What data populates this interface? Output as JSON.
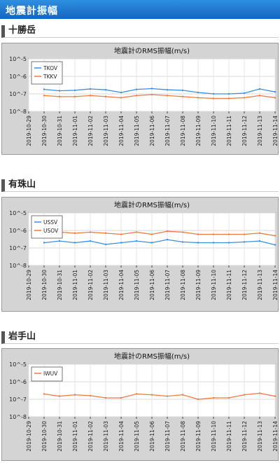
{
  "page_title": "地震計振幅",
  "sections": [
    {
      "title": "十勝岳",
      "chart_data": {
        "type": "line",
        "title": "地震計のRMS振幅(m/s)",
        "xlabel": "",
        "ylabel": "",
        "yscale": "log",
        "ylim": [
          "10^-8",
          "10^-5"
        ],
        "ytick_labels": [
          "10^-5",
          "10^-6",
          "10^-7",
          "10^-8"
        ],
        "x_tick_labels": [
          "2019-10-29",
          "2019-10-30",
          "2019-10-31",
          "2019-11-01",
          "2019-11-02",
          "2019-11-03",
          "2019-11-04",
          "2019-11-05",
          "2019-11-06",
          "2019-11-07",
          "2019-11-08",
          "2019-11-09",
          "2019-11-10",
          "2019-11-11",
          "2019-11-12",
          "2019-11-13",
          "2019-11-14"
        ],
        "legend_position": "top-left",
        "grid": true,
        "series": [
          {
            "name": "TKOV",
            "color": "#3b8fe0",
            "x": [
              "2019-10-30",
              "2019-10-31",
              "2019-11-01",
              "2019-11-02",
              "2019-11-03",
              "2019-11-04",
              "2019-11-05",
              "2019-11-06",
              "2019-11-07",
              "2019-11-08",
              "2019-11-09",
              "2019-11-10",
              "2019-11-11",
              "2019-11-12",
              "2019-11-13",
              "2019-11-14"
            ],
            "y": [
              1.8e-07,
              1.5e-07,
              1.6e-07,
              1.9e-07,
              1.7e-07,
              1.2e-07,
              1.8e-07,
              2e-07,
              1.7e-07,
              1.6e-07,
              1.2e-07,
              1e-07,
              1e-07,
              1.1e-07,
              1.9e-07,
              1.3e-07
            ]
          },
          {
            "name": "TKKV",
            "color": "#f07840",
            "x": [
              "2019-10-30",
              "2019-10-31",
              "2019-11-01",
              "2019-11-02",
              "2019-11-03",
              "2019-11-04",
              "2019-11-05",
              "2019-11-06",
              "2019-11-07",
              "2019-11-08",
              "2019-11-09",
              "2019-11-10",
              "2019-11-11",
              "2019-11-12",
              "2019-11-13",
              "2019-11-14"
            ],
            "y": [
              8e-08,
              7e-08,
              7e-08,
              8e-08,
              7e-08,
              6e-08,
              8e-08,
              9e-08,
              8e-08,
              7e-08,
              6e-08,
              5.5e-08,
              5.5e-08,
              6e-08,
              8e-08,
              6e-08
            ]
          }
        ]
      }
    },
    {
      "title": "有珠山",
      "chart_data": {
        "type": "line",
        "title": "地震計のRMS振幅(m/s)",
        "xlabel": "",
        "ylabel": "",
        "yscale": "log",
        "ylim": [
          "10^-8",
          "10^-5"
        ],
        "ytick_labels": [
          "10^-5",
          "10^-6",
          "10^-7",
          "10^-8"
        ],
        "x_tick_labels": [
          "2019-10-29",
          "2019-10-30",
          "2019-10-31",
          "2019-11-01",
          "2019-11-02",
          "2019-11-03",
          "2019-11-04",
          "2019-11-05",
          "2019-11-06",
          "2019-11-07",
          "2019-11-08",
          "2019-11-09",
          "2019-11-10",
          "2019-11-11",
          "2019-11-12",
          "2019-11-13",
          "2019-11-14"
        ],
        "legend_position": "top-left",
        "grid": true,
        "series": [
          {
            "name": "USSV",
            "color": "#3b8fe0",
            "x": [
              "2019-10-30",
              "2019-10-31",
              "2019-11-01",
              "2019-11-02",
              "2019-11-03",
              "2019-11-04",
              "2019-11-05",
              "2019-11-06",
              "2019-11-07",
              "2019-11-08",
              "2019-11-09",
              "2019-11-10",
              "2019-11-11",
              "2019-11-12",
              "2019-11-13",
              "2019-11-14"
            ],
            "y": [
              2e-07,
              2.5e-07,
              2e-07,
              2.5e-07,
              1.6e-07,
              2e-07,
              2.5e-07,
              2e-07,
              3e-07,
              2.2e-07,
              2e-07,
              2e-07,
              2e-07,
              2.2e-07,
              2.5e-07,
              1.5e-07
            ]
          },
          {
            "name": "USOV",
            "color": "#f07840",
            "x": [
              "2019-10-30",
              "2019-10-31",
              "2019-11-01",
              "2019-11-02",
              "2019-11-03",
              "2019-11-04",
              "2019-11-05",
              "2019-11-06",
              "2019-11-07",
              "2019-11-08",
              "2019-11-09",
              "2019-11-10",
              "2019-11-11",
              "2019-11-12",
              "2019-11-13",
              "2019-11-14"
            ],
            "y": [
              6e-07,
              8e-07,
              7e-07,
              8e-07,
              7e-07,
              6e-07,
              8e-07,
              6e-07,
              9e-07,
              8e-07,
              6e-07,
              6e-07,
              6e-07,
              6e-07,
              7e-07,
              5e-07
            ]
          }
        ]
      }
    },
    {
      "title": "岩手山",
      "chart_data": {
        "type": "line",
        "title": "地震計のRMS振幅(m/s)",
        "xlabel": "",
        "ylabel": "",
        "yscale": "log",
        "ylim": [
          "10^-8",
          "10^-5"
        ],
        "ytick_labels": [
          "10^-5",
          "10^-6",
          "10^-7",
          "10^-8"
        ],
        "x_tick_labels": [
          "2019-10-29",
          "2019-10-30",
          "2019-10-31",
          "2019-11-01",
          "2019-11-02",
          "2019-11-03",
          "2019-11-04",
          "2019-11-05",
          "2019-11-06",
          "2019-11-07",
          "2019-11-08",
          "2019-11-09",
          "2019-11-10",
          "2019-11-11",
          "2019-11-12",
          "2019-11-13",
          "2019-11-14"
        ],
        "legend_position": "top-left",
        "grid": true,
        "series": [
          {
            "name": "IWUV",
            "color": "#f07840",
            "x": [
              "2019-10-30",
              "2019-10-31",
              "2019-11-01",
              "2019-11-02",
              "2019-11-03",
              "2019-11-04",
              "2019-11-05",
              "2019-11-06",
              "2019-11-07",
              "2019-11-08",
              "2019-11-09",
              "2019-11-10",
              "2019-11-11",
              "2019-11-12",
              "2019-11-13",
              "2019-11-14"
            ],
            "y": [
              2e-07,
              1.5e-07,
              1.8e-07,
              1.6e-07,
              1.2e-07,
              1.2e-07,
              2e-07,
              1.8e-07,
              1.5e-07,
              1.8e-07,
              1e-07,
              1.2e-07,
              1.2e-07,
              1.8e-07,
              2.2e-07,
              1.5e-07
            ]
          }
        ]
      }
    }
  ]
}
